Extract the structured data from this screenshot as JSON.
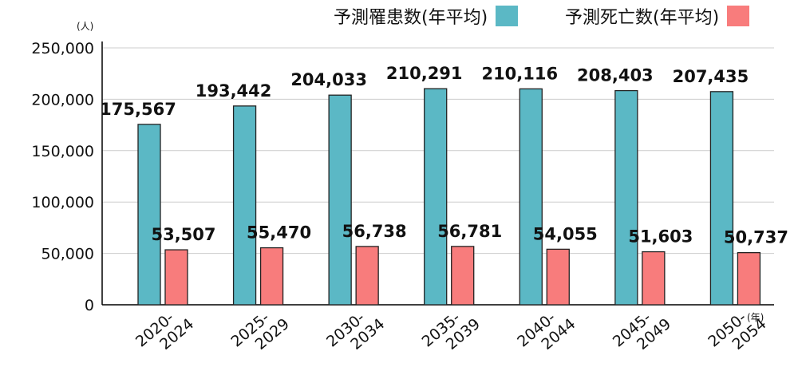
{
  "chart_data": {
    "type": "bar",
    "categories": [
      "2020-2024",
      "2025-2029",
      "2030-2034",
      "2035-2039",
      "2040-2044",
      "2045-2049",
      "2050-2054"
    ],
    "series": [
      {
        "name": "予測罹患数(年平均)",
        "color": "#5bb8c5",
        "values": [
          175567,
          193442,
          204033,
          210291,
          210116,
          208403,
          207435
        ],
        "labels": [
          "175,567",
          "193,442",
          "204,033",
          "210,291",
          "210,116",
          "208,403",
          "207,435"
        ]
      },
      {
        "name": "予測死亡数(年平均)",
        "color": "#f87c7c",
        "values": [
          53507,
          55470,
          56738,
          56781,
          54055,
          51603,
          50737
        ],
        "labels": [
          "53,507",
          "55,470",
          "56,738",
          "56,781",
          "54,055",
          "51,603",
          "50,737"
        ]
      }
    ],
    "ylim": [
      0,
      250000
    ],
    "yticks": [
      0,
      50000,
      100000,
      150000,
      200000,
      250000
    ],
    "ytick_labels": [
      "0",
      "50,000",
      "100,000",
      "150,000",
      "200,000",
      "250,000"
    ],
    "ylabel": "(人)",
    "xlabel": "(年)",
    "grid": true,
    "legend_position": "top-right"
  }
}
